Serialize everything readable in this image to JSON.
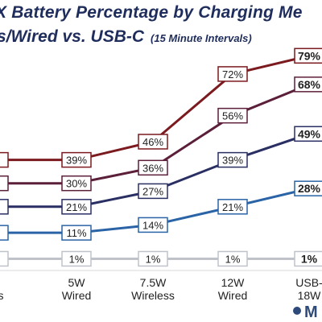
{
  "title_text": "X Battery Percentage by Charging Me",
  "subtitle_text": "s/Wired vs. USB-C",
  "interval_text": "(15 Minute Intervals)",
  "logo_letter": "M",
  "chart_data": {
    "type": "line",
    "categories": [
      [
        "",
        "less"
      ],
      [
        "5W",
        "Wired"
      ],
      [
        "7.5W",
        "Wireless"
      ],
      [
        "12W",
        "Wired"
      ],
      [
        "USB-",
        "18W"
      ]
    ],
    "series": [
      {
        "color": "#7b1a1f",
        "values": [
          null,
          39,
          46,
          72,
          79
        ],
        "labels": [
          "%",
          "39%",
          "46%",
          "72%",
          "79%"
        ]
      },
      {
        "color": "#5c1f3a",
        "values": [
          null,
          30,
          36,
          56,
          68
        ],
        "labels": [
          "%",
          "30%",
          "36%",
          "56%",
          "68%"
        ]
      },
      {
        "color": "#2a2f63",
        "values": [
          null,
          21,
          27,
          39,
          49
        ],
        "labels": [
          "%",
          "21%",
          "27%",
          "39%",
          "49%"
        ]
      },
      {
        "color": "#2a63a6",
        "values": [
          null,
          11,
          14,
          21,
          28
        ],
        "labels": [
          "%",
          "11%",
          "14%",
          "21%",
          "28%"
        ]
      },
      {
        "color": "#bfc3c9",
        "values": [
          1,
          1,
          1,
          1,
          1
        ],
        "labels": [
          "%",
          "1%",
          "1%",
          "1%",
          "1%"
        ]
      }
    ]
  }
}
